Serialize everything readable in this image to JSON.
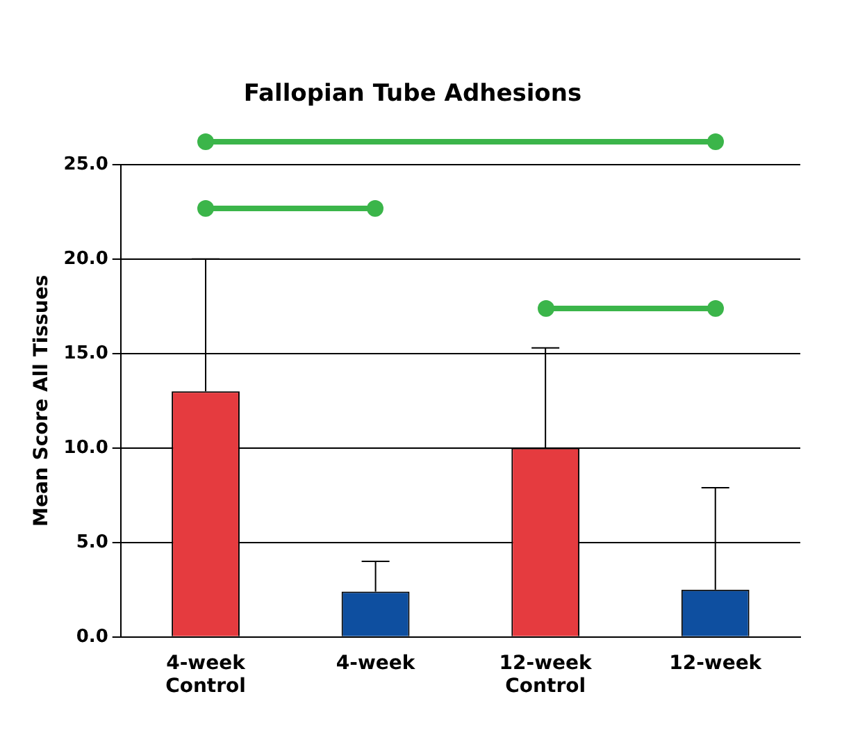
{
  "chart_data": {
    "type": "bar",
    "title": "Fallopian Tube Adhesions",
    "ylabel": "Mean Score All Tissues",
    "categories": [
      "4-week Control",
      "4-week",
      "12-week Control",
      "12-week"
    ],
    "values": [
      13.0,
      2.4,
      10.0,
      2.5
    ],
    "colors": [
      "#e53b3f",
      "#0e4fa0",
      "#e53b3f",
      "#0e4fa0"
    ],
    "errors": [
      [
        13.0,
        20.0
      ],
      [
        2.4,
        4.0
      ],
      [
        10.0,
        15.3
      ],
      [
        2.5,
        7.9
      ]
    ],
    "ylim": [
      0,
      25
    ],
    "yticks": [
      {
        "value": 0,
        "label": "0.0"
      },
      {
        "value": 5,
        "label": "5.0"
      },
      {
        "value": 10,
        "label": "10.0"
      },
      {
        "value": 15,
        "label": "15.0"
      },
      {
        "value": 20,
        "label": "20.0"
      },
      {
        "value": 25,
        "label": "25.0"
      }
    ],
    "grid": "y",
    "legend": false
  }
}
